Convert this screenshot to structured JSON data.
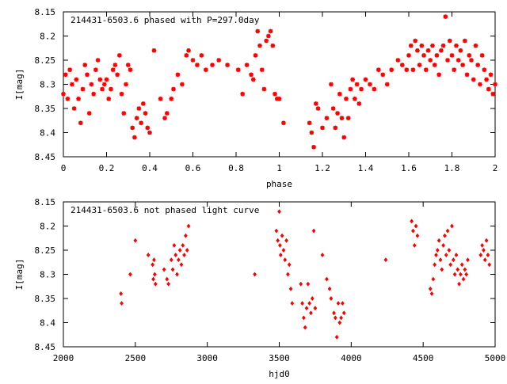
{
  "chart_data": [
    {
      "type": "scatter",
      "title": "214431-6503.6 phased with P=297.0day",
      "xlabel": "phase",
      "ylabel": "I[mag]",
      "xlim": [
        0,
        2
      ],
      "ylim": [
        8.15,
        8.45
      ],
      "y_inverted": true,
      "xticks": [
        "0",
        "0.2",
        "0.4",
        "0.6",
        "0.8",
        "1",
        "1.2",
        "1.4",
        "1.6",
        "1.8",
        "2"
      ],
      "xtick_values": [
        0,
        0.2,
        0.4,
        0.6,
        0.8,
        1.0,
        1.2,
        1.4,
        1.6,
        1.8,
        2.0
      ],
      "yticks": [
        "8.15",
        "8.2",
        "8.25",
        "8.3",
        "8.35",
        "8.4",
        "8.45"
      ],
      "ytick_values": [
        8.15,
        8.2,
        8.25,
        8.3,
        8.35,
        8.4,
        8.45
      ],
      "marker_color": "#ff0000",
      "marker": "cross",
      "points": [
        [
          0.0,
          8.32
        ],
        [
          0.01,
          8.28
        ],
        [
          0.02,
          8.33
        ],
        [
          0.03,
          8.27
        ],
        [
          0.04,
          8.3
        ],
        [
          0.05,
          8.35
        ],
        [
          0.06,
          8.29
        ],
        [
          0.07,
          8.33
        ],
        [
          0.08,
          8.38
        ],
        [
          0.09,
          8.31
        ],
        [
          0.1,
          8.26
        ],
        [
          0.11,
          8.28
        ],
        [
          0.12,
          8.36
        ],
        [
          0.13,
          8.3
        ],
        [
          0.14,
          8.32
        ],
        [
          0.15,
          8.27
        ],
        [
          0.16,
          8.25
        ],
        [
          0.17,
          8.29
        ],
        [
          0.18,
          8.31
        ],
        [
          0.19,
          8.3
        ],
        [
          0.2,
          8.29
        ],
        [
          0.21,
          8.33
        ],
        [
          0.22,
          8.31
        ],
        [
          0.23,
          8.27
        ],
        [
          0.24,
          8.26
        ],
        [
          0.25,
          8.28
        ],
        [
          0.26,
          8.24
        ],
        [
          0.27,
          8.32
        ],
        [
          0.28,
          8.36
        ],
        [
          0.29,
          8.3
        ],
        [
          0.3,
          8.26
        ],
        [
          0.31,
          8.27
        ],
        [
          0.32,
          8.39
        ],
        [
          0.33,
          8.41
        ],
        [
          0.34,
          8.37
        ],
        [
          0.35,
          8.35
        ],
        [
          0.36,
          8.38
        ],
        [
          0.37,
          8.34
        ],
        [
          0.38,
          8.36
        ],
        [
          0.39,
          8.39
        ],
        [
          0.4,
          8.4
        ],
        [
          0.42,
          8.23
        ],
        [
          0.45,
          8.33
        ],
        [
          0.47,
          8.37
        ],
        [
          0.48,
          8.36
        ],
        [
          0.5,
          8.33
        ],
        [
          0.51,
          8.31
        ],
        [
          0.53,
          8.28
        ],
        [
          0.55,
          8.3
        ],
        [
          0.57,
          8.24
        ],
        [
          0.58,
          8.23
        ],
        [
          0.6,
          8.25
        ],
        [
          0.62,
          8.26
        ],
        [
          0.64,
          8.24
        ],
        [
          0.66,
          8.27
        ],
        [
          0.69,
          8.26
        ],
        [
          0.72,
          8.25
        ],
        [
          0.76,
          8.26
        ],
        [
          0.81,
          8.27
        ],
        [
          0.83,
          8.32
        ],
        [
          0.85,
          8.26
        ],
        [
          0.87,
          8.28
        ],
        [
          0.88,
          8.29
        ],
        [
          0.89,
          8.24
        ],
        [
          0.9,
          8.19
        ],
        [
          0.91,
          8.22
        ],
        [
          0.92,
          8.27
        ],
        [
          0.93,
          8.31
        ],
        [
          0.94,
          8.21
        ],
        [
          0.95,
          8.2
        ],
        [
          0.96,
          8.19
        ],
        [
          0.97,
          8.22
        ],
        [
          0.98,
          8.32
        ],
        [
          0.99,
          8.33
        ],
        [
          1.0,
          8.33
        ],
        [
          1.02,
          8.38
        ],
        [
          1.14,
          8.38
        ],
        [
          1.15,
          8.4
        ],
        [
          1.16,
          8.43
        ],
        [
          1.17,
          8.34
        ],
        [
          1.18,
          8.35
        ],
        [
          1.2,
          8.39
        ],
        [
          1.22,
          8.37
        ],
        [
          1.24,
          8.3
        ],
        [
          1.25,
          8.35
        ],
        [
          1.26,
          8.39
        ],
        [
          1.27,
          8.36
        ],
        [
          1.28,
          8.32
        ],
        [
          1.29,
          8.37
        ],
        [
          1.3,
          8.41
        ],
        [
          1.31,
          8.33
        ],
        [
          1.32,
          8.37
        ],
        [
          1.33,
          8.31
        ],
        [
          1.34,
          8.29
        ],
        [
          1.35,
          8.33
        ],
        [
          1.36,
          8.3
        ],
        [
          1.37,
          8.34
        ],
        [
          1.38,
          8.31
        ],
        [
          1.4,
          8.29
        ],
        [
          1.42,
          8.3
        ],
        [
          1.44,
          8.31
        ],
        [
          1.46,
          8.27
        ],
        [
          1.48,
          8.28
        ],
        [
          1.5,
          8.3
        ],
        [
          1.52,
          8.27
        ],
        [
          1.55,
          8.25
        ],
        [
          1.57,
          8.26
        ],
        [
          1.59,
          8.27
        ],
        [
          1.6,
          8.24
        ],
        [
          1.61,
          8.22
        ],
        [
          1.62,
          8.27
        ],
        [
          1.63,
          8.21
        ],
        [
          1.64,
          8.23
        ],
        [
          1.65,
          8.26
        ],
        [
          1.66,
          8.22
        ],
        [
          1.67,
          8.24
        ],
        [
          1.68,
          8.27
        ],
        [
          1.69,
          8.23
        ],
        [
          1.7,
          8.25
        ],
        [
          1.71,
          8.22
        ],
        [
          1.72,
          8.26
        ],
        [
          1.73,
          8.24
        ],
        [
          1.74,
          8.28
        ],
        [
          1.75,
          8.23
        ],
        [
          1.76,
          8.22
        ],
        [
          1.77,
          8.16
        ],
        [
          1.78,
          8.25
        ],
        [
          1.79,
          8.21
        ],
        [
          1.8,
          8.24
        ],
        [
          1.81,
          8.27
        ],
        [
          1.82,
          8.22
        ],
        [
          1.83,
          8.25
        ],
        [
          1.84,
          8.23
        ],
        [
          1.85,
          8.26
        ],
        [
          1.86,
          8.21
        ],
        [
          1.87,
          8.28
        ],
        [
          1.88,
          8.24
        ],
        [
          1.89,
          8.25
        ],
        [
          1.9,
          8.29
        ],
        [
          1.91,
          8.22
        ],
        [
          1.92,
          8.26
        ],
        [
          1.93,
          8.3
        ],
        [
          1.94,
          8.24
        ],
        [
          1.95,
          8.27
        ],
        [
          1.96,
          8.29
        ],
        [
          1.97,
          8.31
        ],
        [
          1.98,
          8.28
        ],
        [
          1.99,
          8.32
        ],
        [
          2.0,
          8.3
        ]
      ]
    },
    {
      "type": "scatter",
      "title": "214431-6503.6 not phased light curve",
      "xlabel": "hjd0",
      "ylabel": "I[mag]",
      "xlim": [
        2000,
        5000
      ],
      "ylim": [
        8.15,
        8.45
      ],
      "y_inverted": true,
      "xticks": [
        "2000",
        "2500",
        "3000",
        "3500",
        "4000",
        "4500",
        "5000"
      ],
      "xtick_values": [
        2000,
        2500,
        3000,
        3500,
        4000,
        4500,
        5000
      ],
      "yticks": [
        "8.15",
        "8.2",
        "8.25",
        "8.3",
        "8.35",
        "8.4",
        "8.45"
      ],
      "ytick_values": [
        8.15,
        8.2,
        8.25,
        8.3,
        8.35,
        8.4,
        8.45
      ],
      "marker_color": "#ff0000",
      "marker": "diamond",
      "points": [
        [
          2400,
          8.34
        ],
        [
          2405,
          8.36
        ],
        [
          2465,
          8.3
        ],
        [
          2500,
          8.23
        ],
        [
          2590,
          8.26
        ],
        [
          2620,
          8.28
        ],
        [
          2625,
          8.31
        ],
        [
          2630,
          8.27
        ],
        [
          2635,
          8.3
        ],
        [
          2640,
          8.32
        ],
        [
          2700,
          8.29
        ],
        [
          2720,
          8.31
        ],
        [
          2730,
          8.32
        ],
        [
          2750,
          8.27
        ],
        [
          2760,
          8.29
        ],
        [
          2770,
          8.24
        ],
        [
          2780,
          8.26
        ],
        [
          2790,
          8.3
        ],
        [
          2800,
          8.27
        ],
        [
          2810,
          8.25
        ],
        [
          2820,
          8.28
        ],
        [
          2830,
          8.24
        ],
        [
          2840,
          8.26
        ],
        [
          2850,
          8.22
        ],
        [
          2860,
          8.25
        ],
        [
          2870,
          8.2
        ],
        [
          3330,
          8.3
        ],
        [
          3480,
          8.21
        ],
        [
          3490,
          8.23
        ],
        [
          3500,
          8.17
        ],
        [
          3505,
          8.24
        ],
        [
          3510,
          8.26
        ],
        [
          3520,
          8.22
        ],
        [
          3530,
          8.25
        ],
        [
          3540,
          8.27
        ],
        [
          3550,
          8.23
        ],
        [
          3560,
          8.3
        ],
        [
          3570,
          8.28
        ],
        [
          3580,
          8.33
        ],
        [
          3590,
          8.36
        ],
        [
          3650,
          8.32
        ],
        [
          3660,
          8.36
        ],
        [
          3670,
          8.39
        ],
        [
          3680,
          8.41
        ],
        [
          3690,
          8.37
        ],
        [
          3700,
          8.32
        ],
        [
          3710,
          8.36
        ],
        [
          3720,
          8.38
        ],
        [
          3730,
          8.35
        ],
        [
          3740,
          8.21
        ],
        [
          3750,
          8.37
        ],
        [
          3800,
          8.26
        ],
        [
          3830,
          8.31
        ],
        [
          3850,
          8.33
        ],
        [
          3860,
          8.35
        ],
        [
          3880,
          8.38
        ],
        [
          3890,
          8.39
        ],
        [
          3900,
          8.43
        ],
        [
          3910,
          8.36
        ],
        [
          3920,
          8.4
        ],
        [
          3930,
          8.39
        ],
        [
          3940,
          8.36
        ],
        [
          3950,
          8.38
        ],
        [
          4240,
          8.27
        ],
        [
          4420,
          8.19
        ],
        [
          4430,
          8.21
        ],
        [
          4440,
          8.24
        ],
        [
          4450,
          8.2
        ],
        [
          4460,
          8.22
        ],
        [
          4550,
          8.33
        ],
        [
          4560,
          8.34
        ],
        [
          4570,
          8.31
        ],
        [
          4580,
          8.28
        ],
        [
          4590,
          8.26
        ],
        [
          4600,
          8.25
        ],
        [
          4610,
          8.23
        ],
        [
          4620,
          8.27
        ],
        [
          4630,
          8.29
        ],
        [
          4640,
          8.24
        ],
        [
          4650,
          8.22
        ],
        [
          4660,
          8.26
        ],
        [
          4670,
          8.21
        ],
        [
          4680,
          8.25
        ],
        [
          4690,
          8.28
        ],
        [
          4700,
          8.2
        ],
        [
          4710,
          8.27
        ],
        [
          4720,
          8.3
        ],
        [
          4730,
          8.26
        ],
        [
          4740,
          8.29
        ],
        [
          4750,
          8.32
        ],
        [
          4760,
          8.3
        ],
        [
          4770,
          8.28
        ],
        [
          4780,
          8.31
        ],
        [
          4790,
          8.29
        ],
        [
          4800,
          8.3
        ],
        [
          4810,
          8.27
        ],
        [
          4900,
          8.26
        ],
        [
          4910,
          8.24
        ],
        [
          4920,
          8.25
        ],
        [
          4930,
          8.27
        ],
        [
          4940,
          8.23
        ],
        [
          4950,
          8.26
        ],
        [
          4960,
          8.28
        ]
      ]
    }
  ]
}
